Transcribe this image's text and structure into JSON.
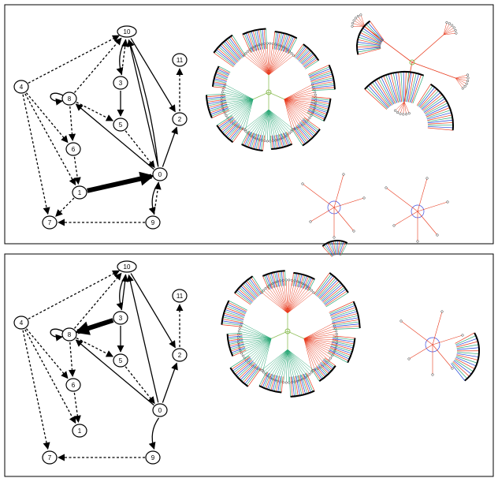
{
  "panels": [
    {
      "id": "top",
      "graph": {
        "nodes": [
          {
            "id": "10",
            "label": "10"
          },
          {
            "id": "11",
            "label": "11"
          },
          {
            "id": "4",
            "label": "4"
          },
          {
            "id": "8",
            "label": "8"
          },
          {
            "id": "3",
            "label": "3"
          },
          {
            "id": "5",
            "label": "5"
          },
          {
            "id": "2",
            "label": "2"
          },
          {
            "id": "6",
            "label": "6"
          },
          {
            "id": "0",
            "label": "0"
          },
          {
            "id": "1",
            "label": "1"
          },
          {
            "id": "7",
            "label": "7"
          },
          {
            "id": "9",
            "label": "9"
          }
        ],
        "edges": [
          {
            "from": "4",
            "to": "10",
            "style": "dashed"
          },
          {
            "from": "4",
            "to": "6",
            "style": "dashed"
          },
          {
            "from": "4",
            "to": "1",
            "style": "dashed"
          },
          {
            "from": "4",
            "to": "7",
            "style": "dashed"
          },
          {
            "from": "3",
            "to": "10",
            "style": "dashed"
          },
          {
            "from": "8",
            "to": "10",
            "style": "dashed"
          },
          {
            "from": "3",
            "to": "5",
            "style": "solid"
          },
          {
            "from": "8",
            "to": "6",
            "style": "dashed"
          },
          {
            "from": "8",
            "to": "5",
            "style": "dashed"
          },
          {
            "from": "0",
            "to": "8",
            "style": "solid"
          },
          {
            "from": "10",
            "to": "3",
            "style": "solid"
          },
          {
            "from": "0",
            "to": "10",
            "style": "solid"
          },
          {
            "from": "0",
            "to": "10",
            "style": "solid"
          },
          {
            "from": "10",
            "to": "2",
            "style": "solid"
          },
          {
            "from": "2",
            "to": "11",
            "style": "dashed"
          },
          {
            "from": "0",
            "to": "2",
            "style": "solid"
          },
          {
            "from": "5",
            "to": "0",
            "style": "dashed"
          },
          {
            "from": "6",
            "to": "1",
            "style": "dashed"
          },
          {
            "from": "1",
            "to": "0",
            "style": "heavy"
          },
          {
            "from": "1",
            "to": "7",
            "style": "dashed"
          },
          {
            "from": "9",
            "to": "7",
            "style": "dashed"
          },
          {
            "from": "9",
            "to": "0",
            "style": "dashed"
          },
          {
            "from": "0",
            "to": "9",
            "style": "solid"
          },
          {
            "from": "8",
            "to": "8",
            "style": "selfloop"
          }
        ]
      },
      "trees": [
        {
          "name": "large-radial-tree",
          "kind": "big"
        },
        {
          "name": "medium-radial-tree",
          "kind": "medium"
        },
        {
          "name": "small-radial-tree-a",
          "kind": "small"
        },
        {
          "name": "small-radial-tree-b",
          "kind": "small"
        }
      ]
    },
    {
      "id": "bottom",
      "graph": {
        "nodes": [
          {
            "id": "10",
            "label": "10"
          },
          {
            "id": "11",
            "label": "11"
          },
          {
            "id": "4",
            "label": "4"
          },
          {
            "id": "8",
            "label": "8"
          },
          {
            "id": "3",
            "label": "3"
          },
          {
            "id": "5",
            "label": "5"
          },
          {
            "id": "2",
            "label": "2"
          },
          {
            "id": "6",
            "label": "6"
          },
          {
            "id": "0",
            "label": "0"
          },
          {
            "id": "1",
            "label": "1"
          },
          {
            "id": "7",
            "label": "7"
          },
          {
            "id": "9",
            "label": "9"
          }
        ],
        "edges": [
          {
            "from": "4",
            "to": "10",
            "style": "dashed"
          },
          {
            "from": "4",
            "to": "6",
            "style": "dashed"
          },
          {
            "from": "4",
            "to": "1",
            "style": "dashed"
          },
          {
            "from": "4",
            "to": "7",
            "style": "dashed"
          },
          {
            "from": "3",
            "to": "10",
            "style": "solid"
          },
          {
            "from": "8",
            "to": "10",
            "style": "dashed"
          },
          {
            "from": "3",
            "to": "5",
            "style": "solid"
          },
          {
            "from": "3",
            "to": "8",
            "style": "heavy"
          },
          {
            "from": "8",
            "to": "6",
            "style": "dashed"
          },
          {
            "from": "8",
            "to": "5",
            "style": "dashed"
          },
          {
            "from": "0",
            "to": "8",
            "style": "solid"
          },
          {
            "from": "10",
            "to": "3",
            "style": "solid"
          },
          {
            "from": "0",
            "to": "10",
            "style": "solid"
          },
          {
            "from": "10",
            "to": "2",
            "style": "solid"
          },
          {
            "from": "2",
            "to": "11",
            "style": "dashed"
          },
          {
            "from": "0",
            "to": "2",
            "style": "solid"
          },
          {
            "from": "5",
            "to": "0",
            "style": "dashed"
          },
          {
            "from": "6",
            "to": "1",
            "style": "dashed"
          },
          {
            "from": "9",
            "to": "7",
            "style": "dashed"
          },
          {
            "from": "0",
            "to": "9",
            "style": "solid"
          },
          {
            "from": "8",
            "to": "8",
            "style": "selfloop"
          }
        ]
      },
      "trees": [
        {
          "name": "large-radial-tree",
          "kind": "big2"
        },
        {
          "name": "small-radial-tree-c",
          "kind": "small2"
        }
      ]
    }
  ],
  "colors": {
    "frame": "#000000",
    "edge": "#000000",
    "tree_red": "#e8391c",
    "tree_green": "#2aa876",
    "tree_blue": "#1b3fd9",
    "tree_root_link": "#8fbf5a",
    "tree_hub": "#3a4be0"
  }
}
